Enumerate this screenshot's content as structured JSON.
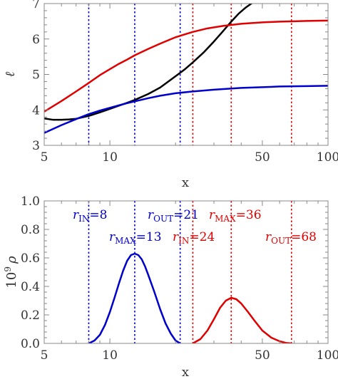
{
  "chart_data": [
    {
      "type": "line",
      "xlabel": "x",
      "ylabel": "ℓ",
      "x_scale": "log",
      "xlim": [
        5,
        100
      ],
      "ylim": [
        3,
        7
      ],
      "x_ticks": [
        5,
        10,
        50,
        100
      ],
      "x_tick_labels": [
        "5",
        "10",
        "50",
        "100"
      ],
      "y_ticks": [
        3,
        4,
        5,
        6,
        7
      ],
      "y_tick_labels": [
        "3",
        "4",
        "5",
        "6",
        "7"
      ],
      "grid": false,
      "series": [
        {
          "color": "#000000",
          "x": [
            5,
            5.5,
            6,
            6.5,
            7,
            8,
            9,
            10,
            11,
            12,
            13,
            15,
            17,
            20,
            22,
            24,
            27,
            30,
            33,
            36,
            39,
            42,
            45
          ],
          "y": [
            3.76,
            3.72,
            3.72,
            3.73,
            3.75,
            3.83,
            3.93,
            4.03,
            4.12,
            4.2,
            4.28,
            4.45,
            4.63,
            4.95,
            5.14,
            5.34,
            5.63,
            5.93,
            6.22,
            6.49,
            6.72,
            6.89,
            7.02
          ]
        },
        {
          "color": "#e00000",
          "x": [
            5,
            6,
            7,
            8,
            9,
            10,
            11,
            12,
            13,
            15,
            17,
            20,
            24,
            28,
            33,
            40,
            50,
            60,
            70,
            80,
            100
          ],
          "y": [
            3.95,
            4.25,
            4.52,
            4.76,
            4.98,
            5.15,
            5.3,
            5.42,
            5.54,
            5.72,
            5.87,
            6.05,
            6.2,
            6.3,
            6.37,
            6.43,
            6.47,
            6.49,
            6.5,
            6.51,
            6.52
          ]
        },
        {
          "color": "#0000cc",
          "x": [
            5,
            6,
            7,
            8,
            9,
            10,
            11,
            12,
            13,
            15,
            17,
            20,
            24,
            30,
            40,
            50,
            60,
            80,
            100
          ],
          "y": [
            3.35,
            3.57,
            3.74,
            3.88,
            3.98,
            4.06,
            4.13,
            4.19,
            4.24,
            4.33,
            4.4,
            4.47,
            4.52,
            4.57,
            4.62,
            4.64,
            4.66,
            4.67,
            4.68
          ]
        }
      ],
      "vlines": [
        {
          "x": 8,
          "color": "#0000cc"
        },
        {
          "x": 13,
          "color": "#0000cc"
        },
        {
          "x": 21,
          "color": "#0000cc"
        },
        {
          "x": 24,
          "color": "#e00000"
        },
        {
          "x": 36,
          "color": "#e00000"
        },
        {
          "x": 68,
          "color": "#e00000"
        }
      ]
    },
    {
      "type": "line",
      "xlabel": "x",
      "ylabel_base": "10",
      "ylabel_exp": "9",
      "ylabel_var": "ρ",
      "x_scale": "log",
      "xlim": [
        5,
        100
      ],
      "ylim": [
        0,
        1
      ],
      "x_ticks": [
        5,
        10,
        50,
        100
      ],
      "x_tick_labels": [
        "5",
        "10",
        "50",
        "100"
      ],
      "y_ticks": [
        0,
        0.2,
        0.4,
        0.6,
        0.8,
        1.0
      ],
      "y_tick_labels": [
        "0.0",
        "0.2",
        "0.4",
        "0.6",
        "0.8",
        "1.0"
      ],
      "grid": false,
      "series": [
        {
          "color": "#0000cc",
          "x": [
            8,
            8.5,
            9,
            9.5,
            10,
            10.5,
            11,
            11.5,
            12,
            12.5,
            13,
            13.5,
            14,
            14.5,
            15,
            16,
            17,
            18,
            19,
            20,
            21
          ],
          "y": [
            0.0,
            0.02,
            0.06,
            0.13,
            0.22,
            0.32,
            0.42,
            0.51,
            0.58,
            0.62,
            0.63,
            0.62,
            0.59,
            0.54,
            0.48,
            0.36,
            0.24,
            0.14,
            0.07,
            0.02,
            0.0
          ]
        },
        {
          "color": "#e00000",
          "x": [
            24,
            26,
            28,
            30,
            32,
            34,
            36,
            38,
            40,
            43,
            46,
            50,
            55,
            60,
            64,
            68
          ],
          "y": [
            0.0,
            0.03,
            0.09,
            0.17,
            0.25,
            0.3,
            0.32,
            0.31,
            0.28,
            0.22,
            0.16,
            0.09,
            0.04,
            0.015,
            0.004,
            0.0
          ]
        }
      ],
      "vlines": [
        {
          "x": 8,
          "color": "#0000cc"
        },
        {
          "x": 13,
          "color": "#0000cc"
        },
        {
          "x": 21,
          "color": "#0000cc"
        },
        {
          "x": 24,
          "color": "#e00000"
        },
        {
          "x": 36,
          "color": "#e00000"
        },
        {
          "x": 68,
          "color": "#e00000"
        }
      ],
      "annotations": [
        {
          "r": "r",
          "sub": "IN",
          "value": "=8",
          "color": "#0000cc"
        },
        {
          "r": "r",
          "sub": "MAX",
          "value": "=13",
          "color": "#0000cc"
        },
        {
          "r": "r",
          "sub": "OUT",
          "value": "=21",
          "color": "#0000cc"
        },
        {
          "r": "r",
          "sub": "IN",
          "value": "=24",
          "color": "#e00000"
        },
        {
          "r": "r",
          "sub": "MAX",
          "value": "=36",
          "color": "#e00000"
        },
        {
          "r": "r",
          "sub": "OUT",
          "value": "=68",
          "color": "#e00000"
        }
      ]
    }
  ]
}
